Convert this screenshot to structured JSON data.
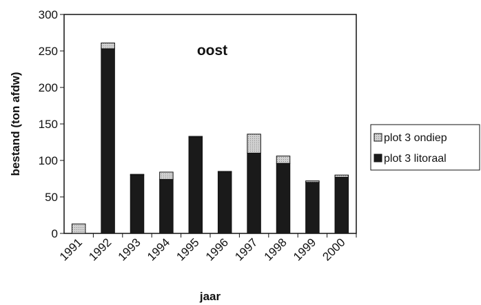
{
  "chart_data": {
    "type": "bar",
    "stacked": true,
    "title": "oost",
    "xlabel": "jaar",
    "ylabel": "bestand (ton afdw)",
    "ylim": [
      0,
      300
    ],
    "yticks": [
      0,
      50,
      100,
      150,
      200,
      250,
      300
    ],
    "grid": false,
    "legend_position": "right",
    "categories": [
      "1991",
      "1992",
      "1993",
      "1994",
      "1995",
      "1996",
      "1997",
      "1998",
      "1999",
      "2000"
    ],
    "series": [
      {
        "name": "plot 3 litoraal",
        "color": "#1a1a1a",
        "values": [
          0,
          253,
          80,
          74,
          132,
          84,
          110,
          96,
          70,
          77
        ]
      },
      {
        "name": "plot 3 ondiep",
        "color": "#c8c8c8",
        "values": [
          13,
          8,
          1,
          10,
          1,
          1,
          26,
          10,
          2,
          3
        ]
      }
    ]
  }
}
